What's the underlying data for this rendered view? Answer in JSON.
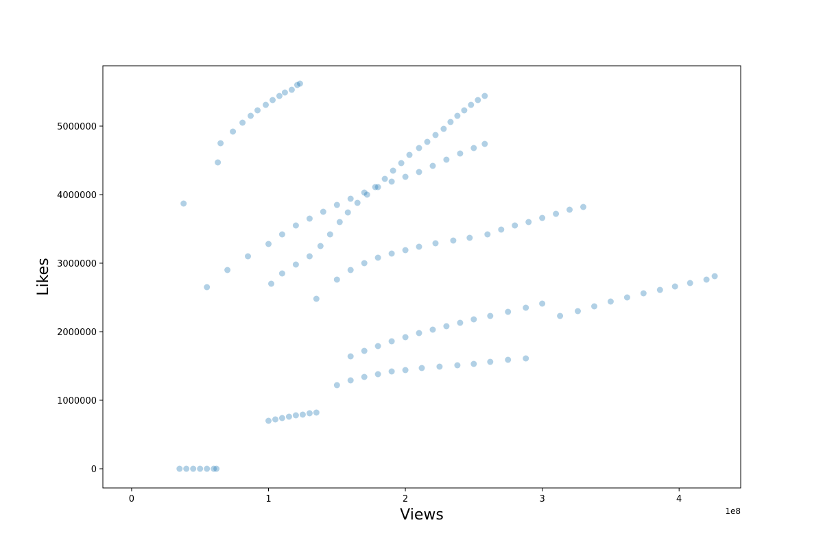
{
  "chart_data": {
    "type": "scatter",
    "title": "",
    "xlabel": "Views",
    "ylabel": "Likes",
    "x_offset_label": "1e8",
    "xlim": [
      -0.21,
      4.45
    ],
    "ylim": [
      -280000,
      5880000
    ],
    "x_ticks": [
      0,
      1,
      2,
      3,
      4
    ],
    "x_tick_labels": [
      "0",
      "1",
      "2",
      "3",
      "4"
    ],
    "y_ticks": [
      0,
      1000000,
      2000000,
      3000000,
      4000000,
      5000000
    ],
    "y_tick_labels": [
      "0",
      "1000000",
      "2000000",
      "3000000",
      "4000000",
      "5000000"
    ],
    "grid": false,
    "marker_color": "#1f77b4",
    "marker_alpha": 0.35,
    "series": [
      {
        "x": [
          0.38,
          0.63,
          0.65,
          0.74,
          0.81,
          0.87,
          0.92,
          0.98,
          1.03,
          1.08,
          1.12,
          1.17,
          1.21,
          1.23
        ],
        "y": [
          3870000,
          4470000,
          4750000,
          4920000,
          5050000,
          5150000,
          5230000,
          5310000,
          5380000,
          5440000,
          5490000,
          5530000,
          5600000,
          5620000
        ]
      },
      {
        "x": [
          1.02,
          1.1,
          1.2,
          1.3,
          1.38,
          1.45,
          1.52,
          1.58,
          1.65,
          1.72,
          1.78,
          1.85,
          1.91,
          1.97,
          2.03,
          2.1,
          2.16,
          2.22,
          2.28,
          2.33,
          2.38,
          2.43,
          2.48,
          2.53,
          2.58
        ],
        "y": [
          2700000,
          2850000,
          2980000,
          3100000,
          3250000,
          3420000,
          3600000,
          3740000,
          3880000,
          4000000,
          4110000,
          4230000,
          4350000,
          4460000,
          4580000,
          4680000,
          4770000,
          4870000,
          4960000,
          5060000,
          5150000,
          5230000,
          5310000,
          5380000,
          5440000
        ]
      },
      {
        "x": [
          0.55,
          0.7,
          0.85,
          1.0,
          1.1,
          1.2,
          1.3,
          1.4,
          1.5,
          1.6,
          1.7,
          1.8,
          1.9,
          2.0,
          2.1,
          2.2,
          2.3,
          2.4,
          2.5,
          2.58
        ],
        "y": [
          2650000,
          2900000,
          3100000,
          3280000,
          3420000,
          3550000,
          3650000,
          3750000,
          3850000,
          3940000,
          4030000,
          4110000,
          4190000,
          4260000,
          4330000,
          4420000,
          4510000,
          4600000,
          4680000,
          4740000
        ]
      },
      {
        "x": [
          1.35,
          1.5,
          1.6,
          1.7,
          1.8,
          1.9,
          2.0,
          2.1,
          2.22,
          2.35,
          2.47,
          2.6,
          2.7,
          2.8,
          2.9,
          3.0,
          3.1,
          3.2,
          3.3
        ],
        "y": [
          2480000,
          2760000,
          2900000,
          3000000,
          3080000,
          3140000,
          3190000,
          3240000,
          3290000,
          3330000,
          3370000,
          3420000,
          3490000,
          3550000,
          3600000,
          3660000,
          3720000,
          3780000,
          3820000
        ]
      },
      {
        "x": [
          1.6,
          1.7,
          1.8,
          1.9,
          2.0,
          2.1,
          2.2,
          2.3,
          2.4,
          2.5,
          2.62,
          2.75,
          2.88,
          3.0,
          3.13,
          3.26,
          3.38,
          3.5,
          3.62,
          3.74,
          3.86,
          3.97,
          4.08,
          4.2,
          4.26
        ],
        "y": [
          1640000,
          1720000,
          1790000,
          1860000,
          1920000,
          1980000,
          2030000,
          2080000,
          2130000,
          2180000,
          2230000,
          2290000,
          2350000,
          2410000,
          2230000,
          2300000,
          2370000,
          2440000,
          2500000,
          2560000,
          2610000,
          2660000,
          2710000,
          2760000,
          2810000
        ]
      },
      {
        "x": [
          1.5,
          1.6,
          1.7,
          1.8,
          1.9,
          2.0,
          2.12,
          2.25,
          2.38,
          2.5,
          2.62,
          2.75,
          2.88
        ],
        "y": [
          1220000,
          1290000,
          1340000,
          1380000,
          1420000,
          1440000,
          1470000,
          1490000,
          1510000,
          1530000,
          1560000,
          1590000,
          1610000
        ]
      },
      {
        "x": [
          1.0,
          1.05,
          1.1,
          1.15,
          1.2,
          1.25,
          1.3,
          1.35
        ],
        "y": [
          700000,
          720000,
          740000,
          760000,
          780000,
          790000,
          810000,
          820000
        ]
      },
      {
        "x": [
          0.5,
          0.55,
          0.6,
          0.62,
          0.45,
          0.4,
          0.35
        ],
        "y": [
          0,
          0,
          0,
          0,
          0,
          0,
          0
        ]
      }
    ]
  }
}
